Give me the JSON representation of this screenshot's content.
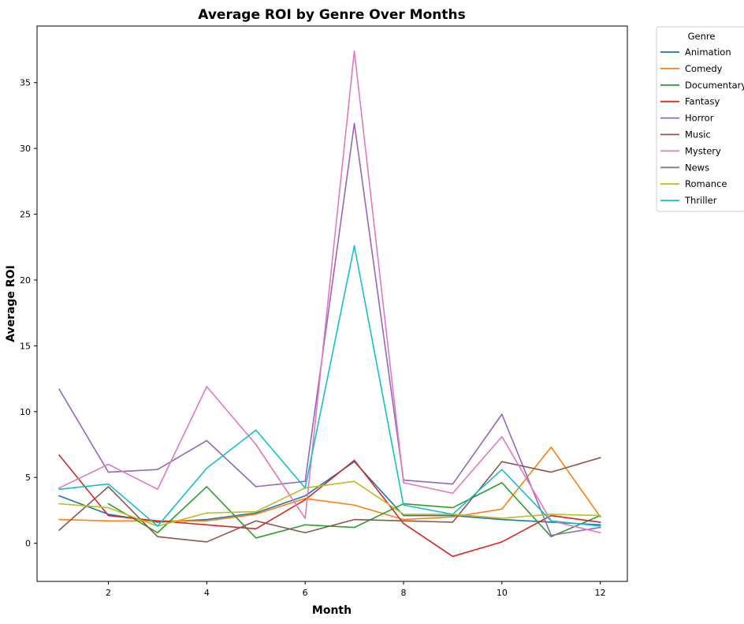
{
  "chart_data": {
    "type": "line",
    "title": "Average ROI by Genre Over Months",
    "xlabel": "Month",
    "ylabel": "Average ROI",
    "x": [
      1,
      2,
      3,
      4,
      5,
      6,
      7,
      8,
      9,
      10,
      11,
      12
    ],
    "xlim": [
      0.55,
      12.55
    ],
    "ylim": [
      -2.9,
      39.3
    ],
    "xticks": [
      2,
      4,
      6,
      8,
      10,
      12
    ],
    "yticks": [
      0,
      5,
      10,
      15,
      20,
      25,
      30,
      35
    ],
    "grid": false,
    "legend": {
      "title": "Genre",
      "placement": "outside-top-right"
    },
    "series": [
      {
        "name": "Animation",
        "color": "#1f77b4",
        "values": [
          3.6,
          2.2,
          1.6,
          1.8,
          2.3,
          3.6,
          6.2,
          2.1,
          2.1,
          1.8,
          1.6,
          1.4
        ]
      },
      {
        "name": "Comedy",
        "color": "#ff7f0e",
        "values": [
          1.8,
          1.7,
          1.7,
          1.7,
          2.2,
          3.4,
          2.9,
          1.8,
          2.0,
          2.6,
          7.3,
          2.0
        ]
      },
      {
        "name": "Documentary",
        "color": "#2ca02c",
        "values": [
          null,
          3.0,
          0.8,
          4.3,
          0.4,
          1.4,
          1.2,
          3.0,
          2.7,
          4.6,
          0.5,
          2.1
        ]
      },
      {
        "name": "Fantasy",
        "color": "#d62728",
        "values": [
          6.7,
          2.1,
          1.7,
          1.4,
          1.1,
          3.3,
          6.3,
          1.5,
          -1.0,
          0.1,
          2.1,
          1.6
        ]
      },
      {
        "name": "Horror",
        "color": "#9467bd",
        "values": [
          11.7,
          5.4,
          5.6,
          7.8,
          4.3,
          4.7,
          31.9,
          4.8,
          4.5,
          9.8,
          0.6,
          1.2
        ]
      },
      {
        "name": "Music",
        "color": "#8c564b",
        "values": [
          1.0,
          4.3,
          0.5,
          0.1,
          1.7,
          0.8,
          1.8,
          1.7,
          1.6,
          6.2,
          5.4,
          6.5
        ]
      },
      {
        "name": "Mystery",
        "color": "#e377c2",
        "values": [
          4.2,
          6.0,
          4.1,
          11.9,
          7.5,
          1.9,
          37.4,
          4.6,
          3.8,
          8.1,
          1.7,
          0.8
        ]
      },
      {
        "name": "News",
        "color": "#7f7f7f",
        "values": [
          null,
          null,
          null,
          null,
          null,
          null,
          null,
          2.1,
          null,
          null,
          null,
          1.4
        ]
      },
      {
        "name": "Romance",
        "color": "#bcbd22",
        "values": [
          3.0,
          2.7,
          1.3,
          2.3,
          2.4,
          4.2,
          4.7,
          2.2,
          2.2,
          1.9,
          2.2,
          2.1
        ]
      },
      {
        "name": "Thriller",
        "color": "#17becf",
        "values": [
          4.1,
          4.5,
          1.3,
          5.7,
          8.6,
          4.2,
          22.6,
          2.9,
          2.2,
          5.6,
          1.7,
          1.3
        ]
      }
    ]
  }
}
